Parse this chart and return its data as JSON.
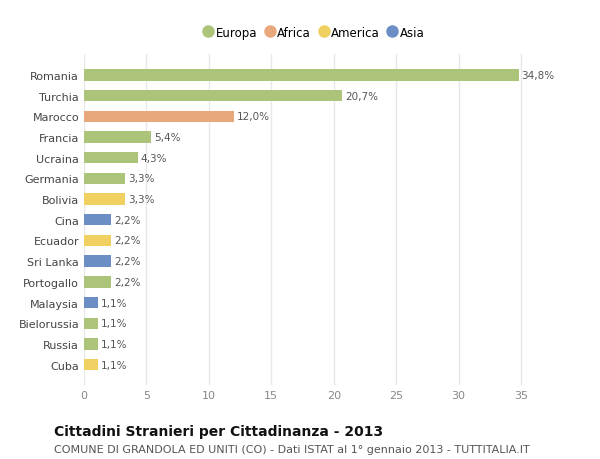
{
  "countries": [
    "Romania",
    "Turchia",
    "Marocco",
    "Francia",
    "Ucraina",
    "Germania",
    "Bolivia",
    "Cina",
    "Ecuador",
    "Sri Lanka",
    "Portogallo",
    "Malaysia",
    "Bielorussia",
    "Russia",
    "Cuba"
  ],
  "values": [
    34.8,
    20.7,
    12.0,
    5.4,
    4.3,
    3.3,
    3.3,
    2.2,
    2.2,
    2.2,
    2.2,
    1.1,
    1.1,
    1.1,
    1.1
  ],
  "labels": [
    "34,8%",
    "20,7%",
    "12,0%",
    "5,4%",
    "4,3%",
    "3,3%",
    "3,3%",
    "2,2%",
    "2,2%",
    "2,2%",
    "2,2%",
    "1,1%",
    "1,1%",
    "1,1%",
    "1,1%"
  ],
  "continents": [
    "Europa",
    "Europa",
    "Africa",
    "Europa",
    "Europa",
    "Europa",
    "America",
    "Asia",
    "America",
    "Asia",
    "Europa",
    "Asia",
    "Europa",
    "Europa",
    "America"
  ],
  "colors": {
    "Europa": "#abc47a",
    "Africa": "#e8a87c",
    "America": "#f0d060",
    "Asia": "#6b8fc4"
  },
  "xlim": [
    0,
    37
  ],
  "xticks": [
    0,
    5,
    10,
    15,
    20,
    25,
    30,
    35
  ],
  "title": "Cittadini Stranieri per Cittadinanza - 2013",
  "subtitle": "COMUNE DI GRANDOLA ED UNITI (CO) - Dati ISTAT al 1° gennaio 2013 - TUTTITALIA.IT",
  "background_color": "#ffffff",
  "plot_bg_color": "#ffffff",
  "grid_color": "#e8e8e8",
  "bar_height": 0.55,
  "title_fontsize": 10,
  "subtitle_fontsize": 8,
  "label_fontsize": 7.5,
  "ytick_fontsize": 8,
  "xtick_fontsize": 8,
  "legend_fontsize": 8.5
}
